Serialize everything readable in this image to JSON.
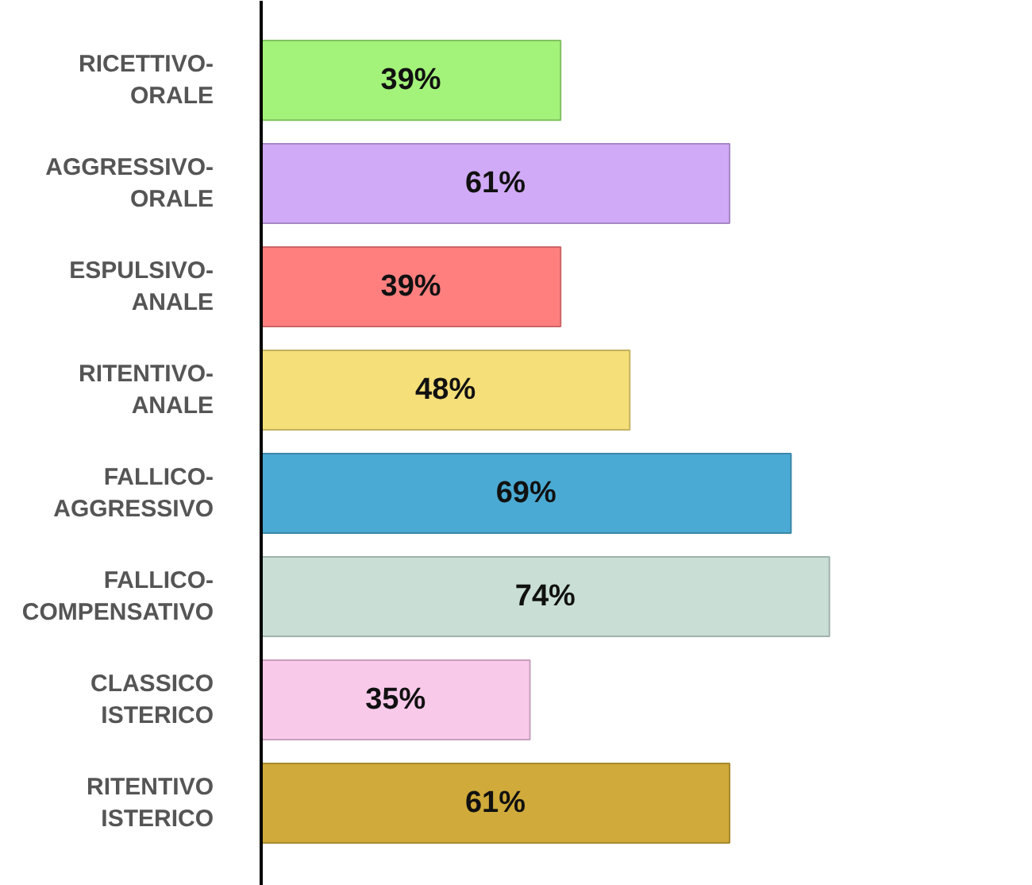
{
  "chart_data": {
    "type": "bar",
    "orientation": "horizontal",
    "categories": [
      "RICETTIVO-\nORALE",
      "AGGRESSIVO-\nORALE",
      "ESPULSIVO-\nANALE",
      "RITENTIVO-\nANALE",
      "FALLICO-\nAGGRESSIVO",
      "FALLICO-\nCOMPENSATIVO",
      "CLASSICO\nISTERICO",
      "RITENTIVO\nISTERICO"
    ],
    "values": [
      39,
      61,
      39,
      48,
      69,
      74,
      35,
      61
    ],
    "colors": [
      "#a3f27a",
      "#d0aaf6",
      "#ff7f7f",
      "#f5df78",
      "#4aaad3",
      "#c9dfd6",
      "#f9c9ea",
      "#d0aa3a"
    ],
    "value_labels": [
      "39%",
      "61%",
      "39%",
      "48%",
      "69%",
      "74%",
      "35%",
      "61%"
    ],
    "tick_labels": "y"
  }
}
